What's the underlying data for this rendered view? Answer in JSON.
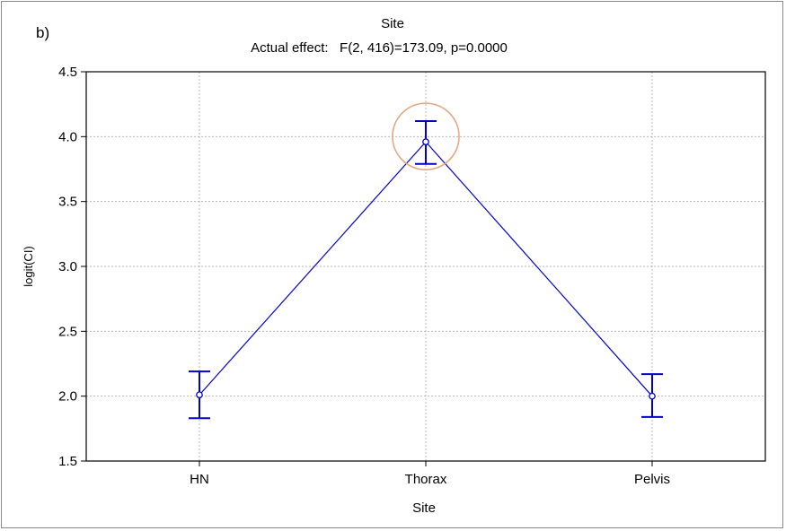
{
  "panel_label": "b)",
  "chart_data": {
    "type": "line",
    "title": "Site",
    "subtitle": "Actual effect:   F(2, 416)=173.09, p=0.0000",
    "xlabel": "Site",
    "ylabel": "logit(CI)",
    "categories": [
      "HN",
      "Thorax",
      "Pelvis"
    ],
    "series": [
      {
        "values": [
          2.01,
          3.96,
          2.0
        ],
        "err_low": [
          1.83,
          3.79,
          1.84
        ],
        "err_high": [
          2.19,
          4.12,
          2.17
        ]
      }
    ],
    "ylim": [
      1.5,
      4.5
    ],
    "yticks": [
      "1.5",
      "2.0",
      "2.5",
      "3.0",
      "3.5",
      "4.0",
      "4.5"
    ],
    "grid": true,
    "legend": "none",
    "highlight_category": "Thorax",
    "colors": {
      "line": "#0000c8",
      "highlight": "#e2a37f",
      "grid": "#b4b4b4"
    }
  }
}
